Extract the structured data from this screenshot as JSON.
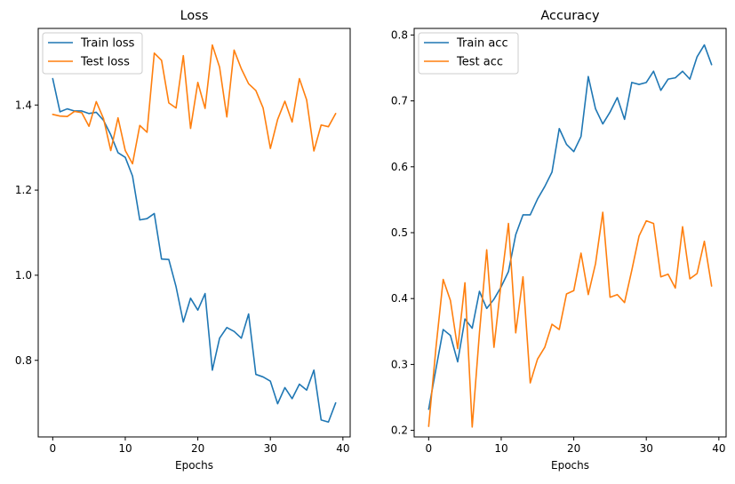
{
  "chart_data": [
    {
      "type": "line",
      "title": "Loss",
      "xlabel": "Epochs",
      "ylabel": "",
      "xlim": [
        -2,
        41
      ],
      "ylim": [
        0.62,
        1.58
      ],
      "xticks": [
        0,
        10,
        20,
        30,
        40
      ],
      "yticks": [
        0.8,
        1.0,
        1.2,
        1.4
      ],
      "xtick_labels": [
        "0",
        "10",
        "20",
        "30",
        "40"
      ],
      "ytick_labels": [
        "0.8",
        "1.0",
        "1.2",
        "1.4"
      ],
      "legend_position": "top-left",
      "grid": false,
      "x": [
        0,
        1,
        2,
        3,
        4,
        5,
        6,
        7,
        8,
        9,
        10,
        11,
        12,
        13,
        14,
        15,
        16,
        17,
        18,
        19,
        20,
        21,
        22,
        23,
        24,
        25,
        26,
        27,
        28,
        29,
        30,
        31,
        32,
        33,
        34,
        35,
        36,
        37,
        38,
        39
      ],
      "series": [
        {
          "name": "Train loss",
          "color": "#1f77b4",
          "values": [
            1.462,
            1.384,
            1.391,
            1.386,
            1.386,
            1.38,
            1.383,
            1.364,
            1.33,
            1.288,
            1.277,
            1.233,
            1.13,
            1.133,
            1.145,
            1.038,
            1.037,
            0.973,
            0.89,
            0.946,
            0.918,
            0.957,
            0.777,
            0.852,
            0.877,
            0.868,
            0.852,
            0.909,
            0.767,
            0.761,
            0.751,
            0.698,
            0.736,
            0.71,
            0.744,
            0.73,
            0.777,
            0.66,
            0.655,
            0.7
          ]
        },
        {
          "name": "Test loss",
          "color": "#ff7f0e",
          "values": [
            1.378,
            1.374,
            1.373,
            1.385,
            1.382,
            1.35,
            1.408,
            1.368,
            1.293,
            1.37,
            1.293,
            1.262,
            1.352,
            1.336,
            1.522,
            1.505,
            1.405,
            1.393,
            1.516,
            1.345,
            1.453,
            1.392,
            1.541,
            1.489,
            1.372,
            1.529,
            1.485,
            1.45,
            1.434,
            1.393,
            1.298,
            1.366,
            1.409,
            1.36,
            1.462,
            1.412,
            1.292,
            1.353,
            1.349,
            1.38
          ]
        }
      ]
    },
    {
      "type": "line",
      "title": "Accuracy",
      "xlabel": "Epochs",
      "ylabel": "",
      "xlim": [
        -2,
        41
      ],
      "ylim": [
        0.19,
        0.81
      ],
      "xticks": [
        0,
        10,
        20,
        30,
        40
      ],
      "yticks": [
        0.2,
        0.3,
        0.4,
        0.5,
        0.6,
        0.7,
        0.8
      ],
      "xtick_labels": [
        "0",
        "10",
        "20",
        "30",
        "40"
      ],
      "ytick_labels": [
        "0.2",
        "0.3",
        "0.4",
        "0.5",
        "0.6",
        "0.7",
        "0.8"
      ],
      "legend_position": "top-left",
      "grid": false,
      "x": [
        0,
        1,
        2,
        3,
        4,
        5,
        6,
        7,
        8,
        9,
        10,
        11,
        12,
        13,
        14,
        15,
        16,
        17,
        18,
        19,
        20,
        21,
        22,
        23,
        24,
        25,
        26,
        27,
        28,
        29,
        30,
        31,
        32,
        33,
        34,
        35,
        36,
        37,
        38,
        39
      ],
      "series": [
        {
          "name": "Train acc",
          "color": "#1f77b4",
          "values": [
            0.232,
            0.293,
            0.353,
            0.344,
            0.304,
            0.369,
            0.355,
            0.411,
            0.385,
            0.399,
            0.418,
            0.441,
            0.497,
            0.527,
            0.527,
            0.551,
            0.57,
            0.592,
            0.658,
            0.634,
            0.623,
            0.646,
            0.737,
            0.688,
            0.665,
            0.683,
            0.705,
            0.672,
            0.728,
            0.725,
            0.728,
            0.745,
            0.716,
            0.733,
            0.735,
            0.745,
            0.733,
            0.767,
            0.785,
            0.755
          ]
        },
        {
          "name": "Test acc",
          "color": "#ff7f0e",
          "values": [
            0.206,
            0.325,
            0.429,
            0.397,
            0.324,
            0.424,
            0.205,
            0.348,
            0.474,
            0.326,
            0.425,
            0.514,
            0.348,
            0.433,
            0.272,
            0.308,
            0.326,
            0.361,
            0.353,
            0.407,
            0.412,
            0.469,
            0.406,
            0.453,
            0.531,
            0.402,
            0.406,
            0.394,
            0.443,
            0.495,
            0.518,
            0.514,
            0.433,
            0.437,
            0.416,
            0.509,
            0.43,
            0.438,
            0.487,
            0.419
          ]
        }
      ]
    }
  ]
}
